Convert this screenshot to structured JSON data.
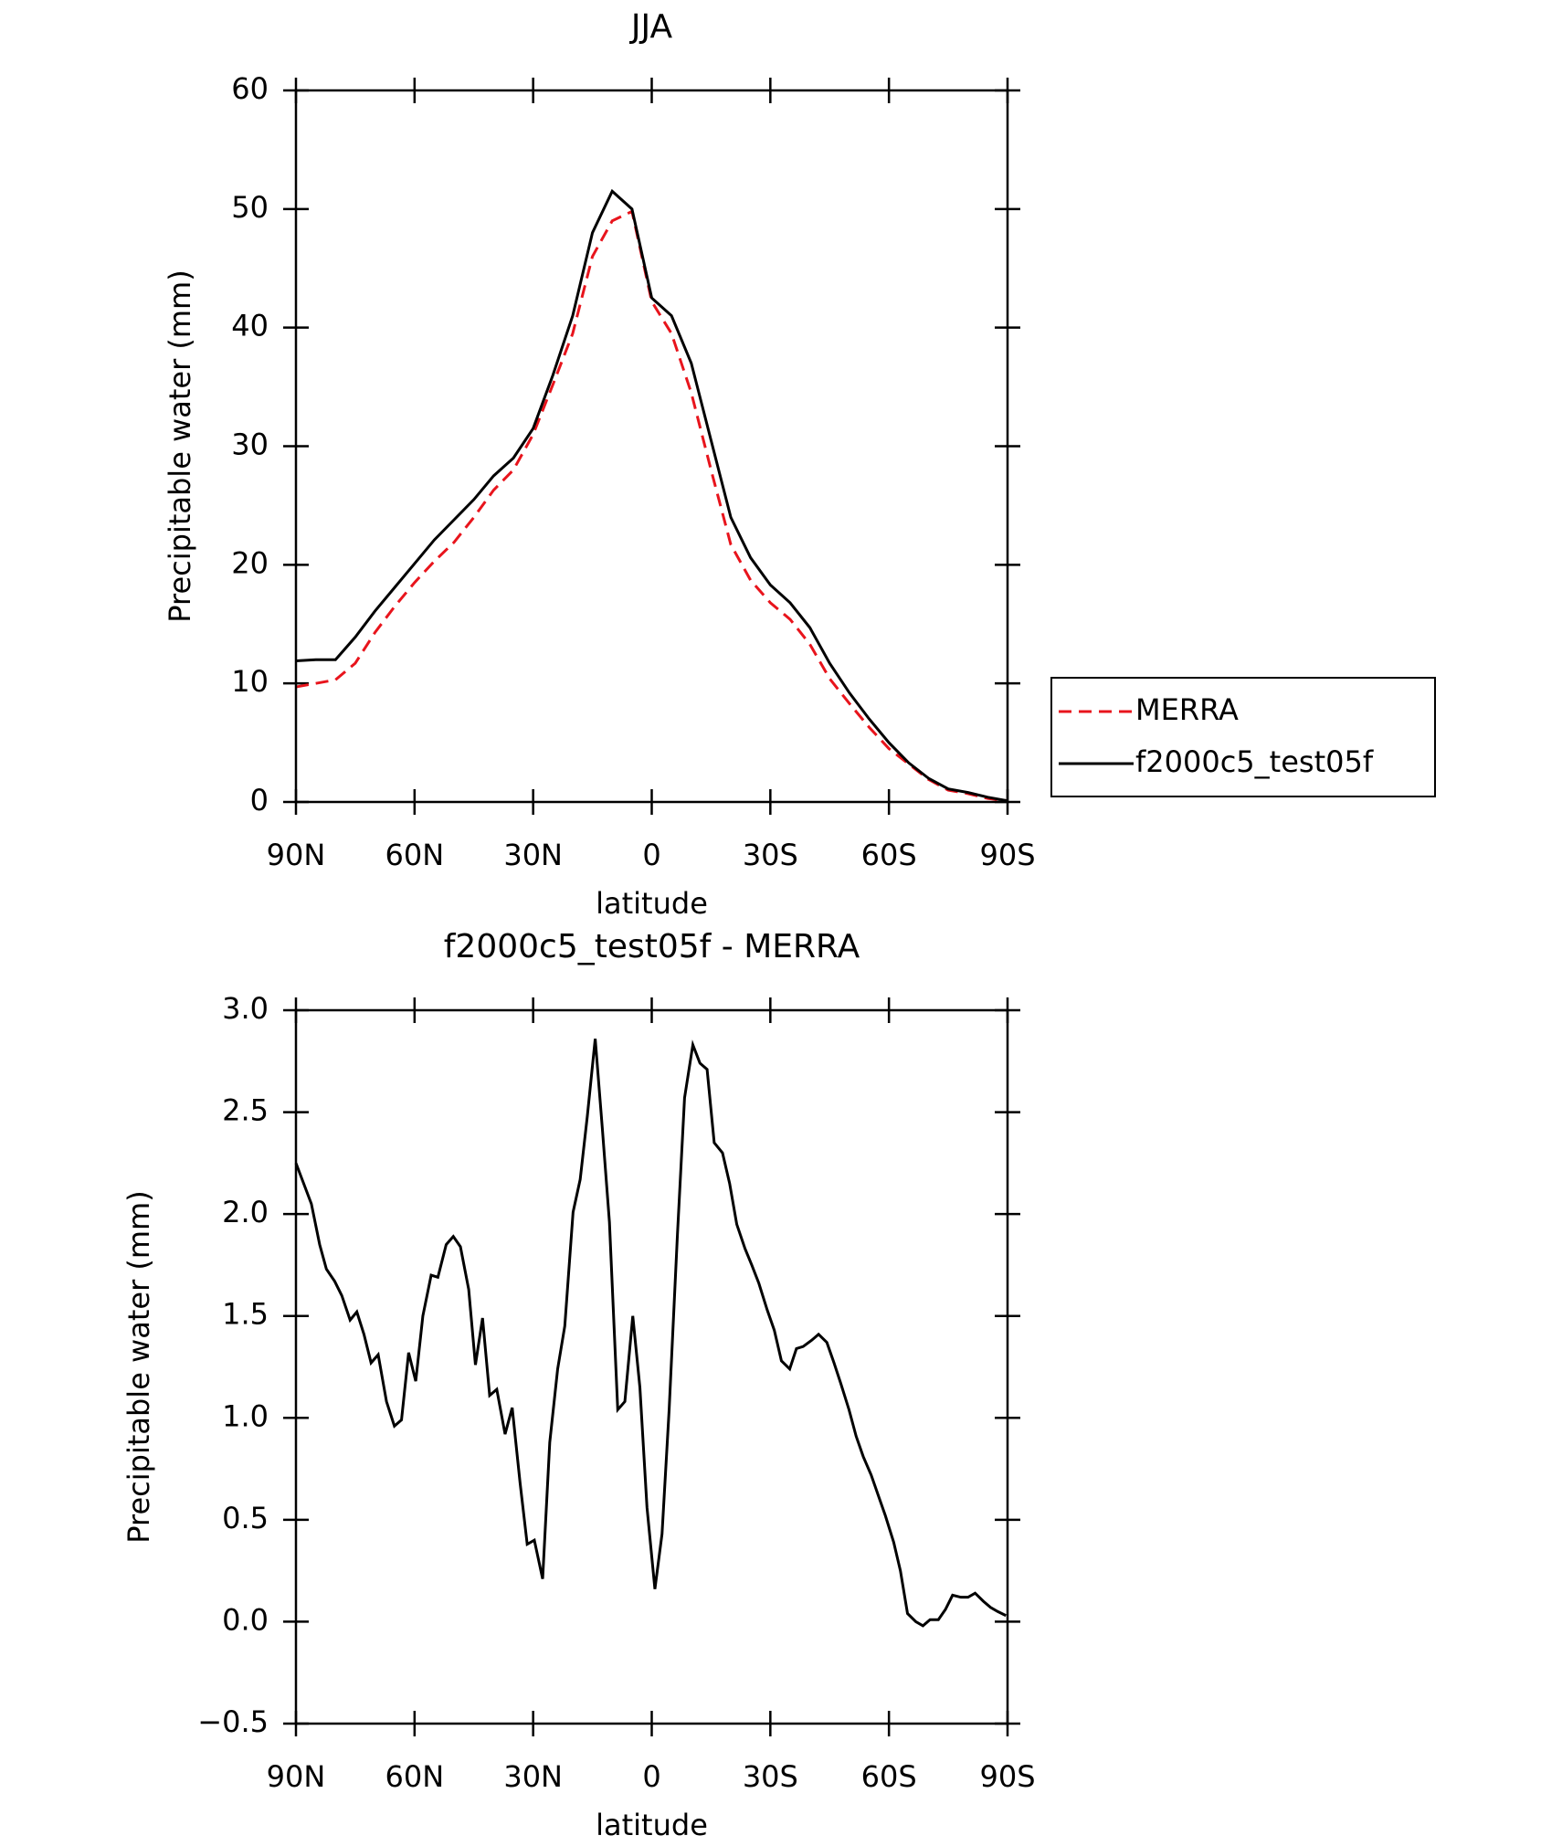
{
  "chart_data": [
    {
      "type": "line",
      "title": "JJA",
      "xlabel": "latitude",
      "ylabel": "Precipitable water (mm)",
      "x": [
        90,
        85,
        80,
        75,
        70,
        65,
        60,
        55,
        50,
        45,
        40,
        35,
        30,
        25,
        20,
        15,
        10,
        5,
        0,
        -5,
        -10,
        -15,
        -20,
        -25,
        -30,
        -35,
        -40,
        -45,
        -50,
        -55,
        -60,
        -65,
        -70,
        -75,
        -80,
        -85,
        -90
      ],
      "series": [
        {
          "name": "MERRA",
          "color": "#e8141c",
          "linestyle": "dashed",
          "values": [
            9.7,
            10.0,
            10.3,
            11.7,
            14.3,
            16.5,
            18.5,
            20.3,
            21.9,
            24.0,
            26.3,
            28,
            31,
            35.2,
            39.5,
            46,
            49,
            49.8,
            42.2,
            39.5,
            34.5,
            28,
            21.7,
            18.7,
            16.8,
            15.4,
            13.3,
            10.4,
            8.3,
            6.3,
            4.5,
            3.2,
            1.9,
            1.0,
            0.7,
            0.3,
            0.1
          ]
        },
        {
          "name": "f2000c5_test05f",
          "color": "#000000",
          "linestyle": "solid",
          "values": [
            11.9,
            12.0,
            12.0,
            13.9,
            16.1,
            18.1,
            20.1,
            22.1,
            23.8,
            25.5,
            27.5,
            29,
            31.5,
            36,
            41,
            48,
            51.5,
            50,
            42.5,
            41,
            37,
            30.5,
            24,
            20.6,
            18.3,
            16.8,
            14.7,
            11.7,
            9.2,
            7,
            5,
            3.3,
            2,
            1.1,
            0.8,
            0.4,
            0.1
          ]
        }
      ],
      "xlim": [
        90,
        -90
      ],
      "xticks": [
        {
          "value": 90,
          "label": "90N"
        },
        {
          "value": 60,
          "label": "60N"
        },
        {
          "value": 30,
          "label": "30N"
        },
        0,
        {
          "value": -30,
          "label": "30S"
        },
        {
          "value": -60,
          "label": "60S"
        },
        {
          "value": -90,
          "label": "90S"
        }
      ],
      "ylim": [
        0,
        60
      ],
      "yticks": [
        0,
        10,
        20,
        30,
        40,
        50,
        60
      ],
      "grid": false,
      "legend": "right"
    },
    {
      "type": "line",
      "title": "f2000c5_test05f - MERRA",
      "xlabel": "latitude",
      "ylabel": "Precipitable water (mm)",
      "x": [
        90,
        86.1,
        84.0,
        82.3,
        80.2,
        78.4,
        76.3,
        74.6,
        72.8,
        71.0,
        69.2,
        67.1,
        65.1,
        63.3,
        61.5,
        59.7,
        57.9,
        55.8,
        54.1,
        52.0,
        50.2,
        48.4,
        46.3,
        44.6,
        42.8,
        41.0,
        39.2,
        37.1,
        35.3,
        33.3,
        31.5,
        29.7,
        27.6,
        25.8,
        23.8,
        22.0,
        19.9,
        18.1,
        16.3,
        14.3,
        12.5,
        10.7,
        8.6,
        6.8,
        4.8,
        3.0,
        1.2,
        -0.8,
        -2.6,
        -4.4,
        -6.5,
        -8.3,
        -10.4,
        -12.2,
        -14.0,
        -15.8,
        -17.9,
        -19.7,
        -21.5,
        -23.6,
        -25.3,
        -27.1,
        -29.2,
        -31.0,
        -32.8,
        -34.9,
        -36.6,
        -38.3,
        -40.4,
        -42.2,
        -44.3,
        -46.1,
        -47.8,
        -49.9,
        -51.7,
        -53.5,
        -55.5,
        -57.3,
        -59.1,
        -61.2,
        -62.9,
        -64.7,
        -66.8,
        -68.6,
        -70.4,
        -72.5,
        -74.3,
        -76.1,
        -78.2,
        -80.0,
        -81.8,
        -83.9,
        -85.7,
        -87.5,
        -89.6
      ],
      "series": [
        {
          "color": "#000000",
          "linestyle": "solid",
          "values": [
            2.25,
            2.05,
            1.85,
            1.73,
            1.67,
            1.6,
            1.48,
            1.52,
            1.41,
            1.27,
            1.31,
            1.08,
            0.96,
            0.99,
            1.32,
            1.18,
            1.5,
            1.7,
            1.69,
            1.85,
            1.89,
            1.84,
            1.63,
            1.26,
            1.49,
            1.11,
            1.14,
            0.92,
            1.05,
            0.68,
            0.38,
            0.4,
            0.21,
            0.88,
            1.24,
            1.45,
            2.01,
            2.17,
            2.48,
            2.86,
            2.42,
            1.96,
            1.04,
            1.08,
            1.5,
            1.15,
            0.56,
            0.16,
            0.43,
            1.04,
            1.9,
            2.57,
            2.83,
            2.74,
            2.71,
            2.35,
            2.3,
            2.15,
            1.95,
            1.83,
            1.75,
            1.66,
            1.53,
            1.43,
            1.28,
            1.24,
            1.34,
            1.35,
            1.38,
            1.41,
            1.37,
            1.27,
            1.17,
            1.04,
            0.91,
            0.81,
            0.72,
            0.62,
            0.52,
            0.39,
            0.25,
            0.04,
            0.0,
            -0.02,
            0.01,
            0.01,
            0.06,
            0.13,
            0.12,
            0.12,
            0.14,
            0.1,
            0.07,
            0.05,
            0.03
          ]
        }
      ],
      "xlim": [
        90,
        -90
      ],
      "xticks": [
        {
          "value": 90,
          "label": "90N"
        },
        {
          "value": 60,
          "label": "60N"
        },
        {
          "value": 30,
          "label": "30N"
        },
        0,
        {
          "value": -30,
          "label": "30S"
        },
        {
          "value": -60,
          "label": "60S"
        },
        {
          "value": -90,
          "label": "90S"
        }
      ],
      "ylim": [
        -0.5,
        3.0
      ],
      "yticks": [
        {
          "value": -0.5,
          "label": "−0.5"
        },
        {
          "value": 0,
          "label": "0.0"
        },
        {
          "value": 0.5,
          "label": "0.5"
        },
        {
          "value": 1.0,
          "label": "1.0"
        },
        {
          "value": 1.5,
          "label": "1.5"
        },
        {
          "value": 2.0,
          "label": "2.0"
        },
        {
          "value": 2.5,
          "label": "2.5"
        },
        {
          "value": 3.0,
          "label": "3.0"
        }
      ],
      "grid": false
    }
  ]
}
